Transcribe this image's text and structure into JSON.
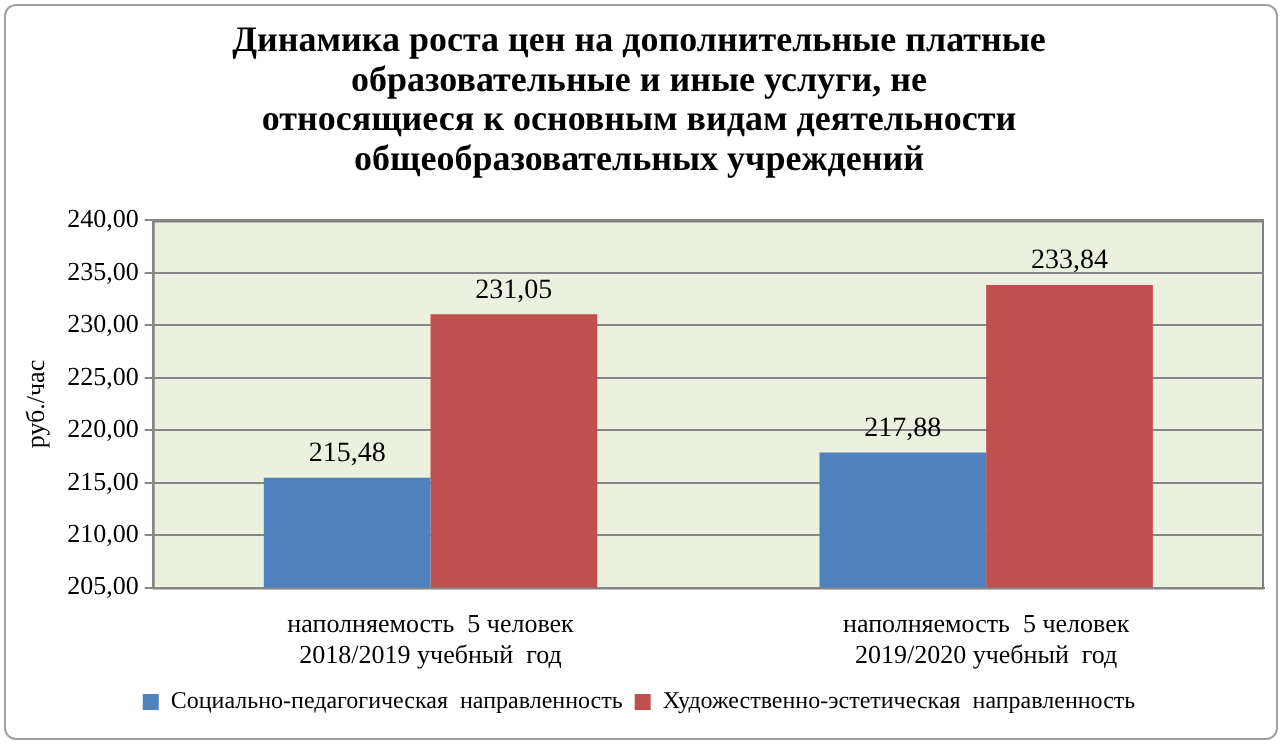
{
  "chart_data": {
    "type": "bar",
    "title": "Динамика роста цен на дополнительные платные\nобразовательные и иные услуги, не\nотносящиеся к основным видам деятельности\nобщеобразовательных учреждений",
    "ylabel": "руб./час",
    "categories": [
      "наполняемость  5 человек\n2018/2019 учебный  год",
      "наполняемость  5 человек\n2019/2020 учебный  год"
    ],
    "series": [
      {
        "name": "Социально-педагогическая  направленность",
        "color": "#4f81bd",
        "values": [
          215.48,
          217.88
        ],
        "value_labels": [
          "215,48",
          "217,88"
        ]
      },
      {
        "name": "Художественно-эстетическая  направленность",
        "color": "#c0504d",
        "values": [
          231.05,
          233.84
        ],
        "value_labels": [
          "231,05",
          "233,84"
        ]
      }
    ],
    "ylim": [
      205,
      240
    ],
    "yticks": [
      {
        "value": 205,
        "label": "205,00"
      },
      {
        "value": 210,
        "label": "210,00"
      },
      {
        "value": 215,
        "label": "215,00"
      },
      {
        "value": 220,
        "label": "220,00"
      },
      {
        "value": 225,
        "label": "225,00"
      },
      {
        "value": 230,
        "label": "230,00"
      },
      {
        "value": 235,
        "label": "235,00"
      },
      {
        "value": 240,
        "label": "240,00"
      }
    ],
    "grid": "y",
    "legend": "bottom"
  }
}
